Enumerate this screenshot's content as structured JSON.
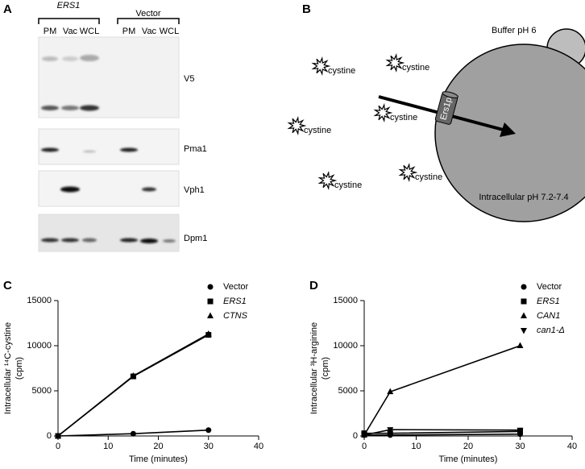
{
  "panel_a": {
    "label": "A",
    "groups": [
      "ERS1",
      "Vector"
    ],
    "lanes": [
      "PM",
      "Vac",
      "WCL",
      "PM",
      "Vac",
      "WCL"
    ],
    "blots": [
      "V5",
      "Pma1",
      "Vph1",
      "Dpm1"
    ]
  },
  "panel_b": {
    "label": "B",
    "buffer": "Buffer pH 6",
    "molecules": [
      "cystine",
      "cystine",
      "cystine",
      "cystine",
      "cystine",
      "cystine"
    ],
    "transporter": "Ers1p",
    "cell": "Intracellular pH 7.2-7.4"
  },
  "chart_data": [
    {
      "type": "line",
      "label": "C",
      "xlabel": "Time (minutes)",
      "ylabel": [
        "Intracellular ¹⁴C-cystine",
        "(cpm)"
      ],
      "xlim": [
        0,
        40
      ],
      "xticks": [
        0,
        10,
        20,
        30,
        40
      ],
      "ylim": [
        0,
        15000
      ],
      "yticks": [
        0,
        5000,
        10000,
        15000
      ],
      "legend": "top-right",
      "x": [
        0,
        15,
        30
      ],
      "series": [
        {
          "name": "Vector",
          "color": "#000000",
          "marker": "circle",
          "values": [
            0,
            250,
            650
          ]
        },
        {
          "name": "ERS1",
          "color": "#000000",
          "marker": "square",
          "values": [
            0,
            6600,
            11200
          ]
        },
        {
          "name": "CTNS",
          "color": "#000000",
          "marker": "triangle",
          "values": [
            0,
            6650,
            11300
          ]
        }
      ]
    },
    {
      "type": "line",
      "label": "D",
      "xlabel": "Time (minutes)",
      "ylabel": [
        "Intracellular ³H-arginine",
        "(cpm)"
      ],
      "xlim": [
        0,
        40
      ],
      "xticks": [
        0,
        10,
        20,
        30,
        40
      ],
      "ylim": [
        0,
        15000
      ],
      "yticks": [
        0,
        5000,
        10000,
        15000
      ],
      "legend": "top-right",
      "x": [
        0,
        5,
        30
      ],
      "series": [
        {
          "name": "Vector",
          "color": "#000000",
          "marker": "circle",
          "values": [
            100,
            100,
            200
          ]
        },
        {
          "name": "ERS1",
          "color": "#000000",
          "marker": "square",
          "values": [
            300,
            300,
            500
          ]
        },
        {
          "name": "CAN1",
          "color": "#000000",
          "marker": "triangle",
          "values": [
            100,
            4900,
            10000
          ]
        },
        {
          "name": "can1-Δ",
          "color": "#000000",
          "marker": "triangle-down",
          "values": [
            100,
            700,
            650
          ]
        }
      ]
    }
  ]
}
